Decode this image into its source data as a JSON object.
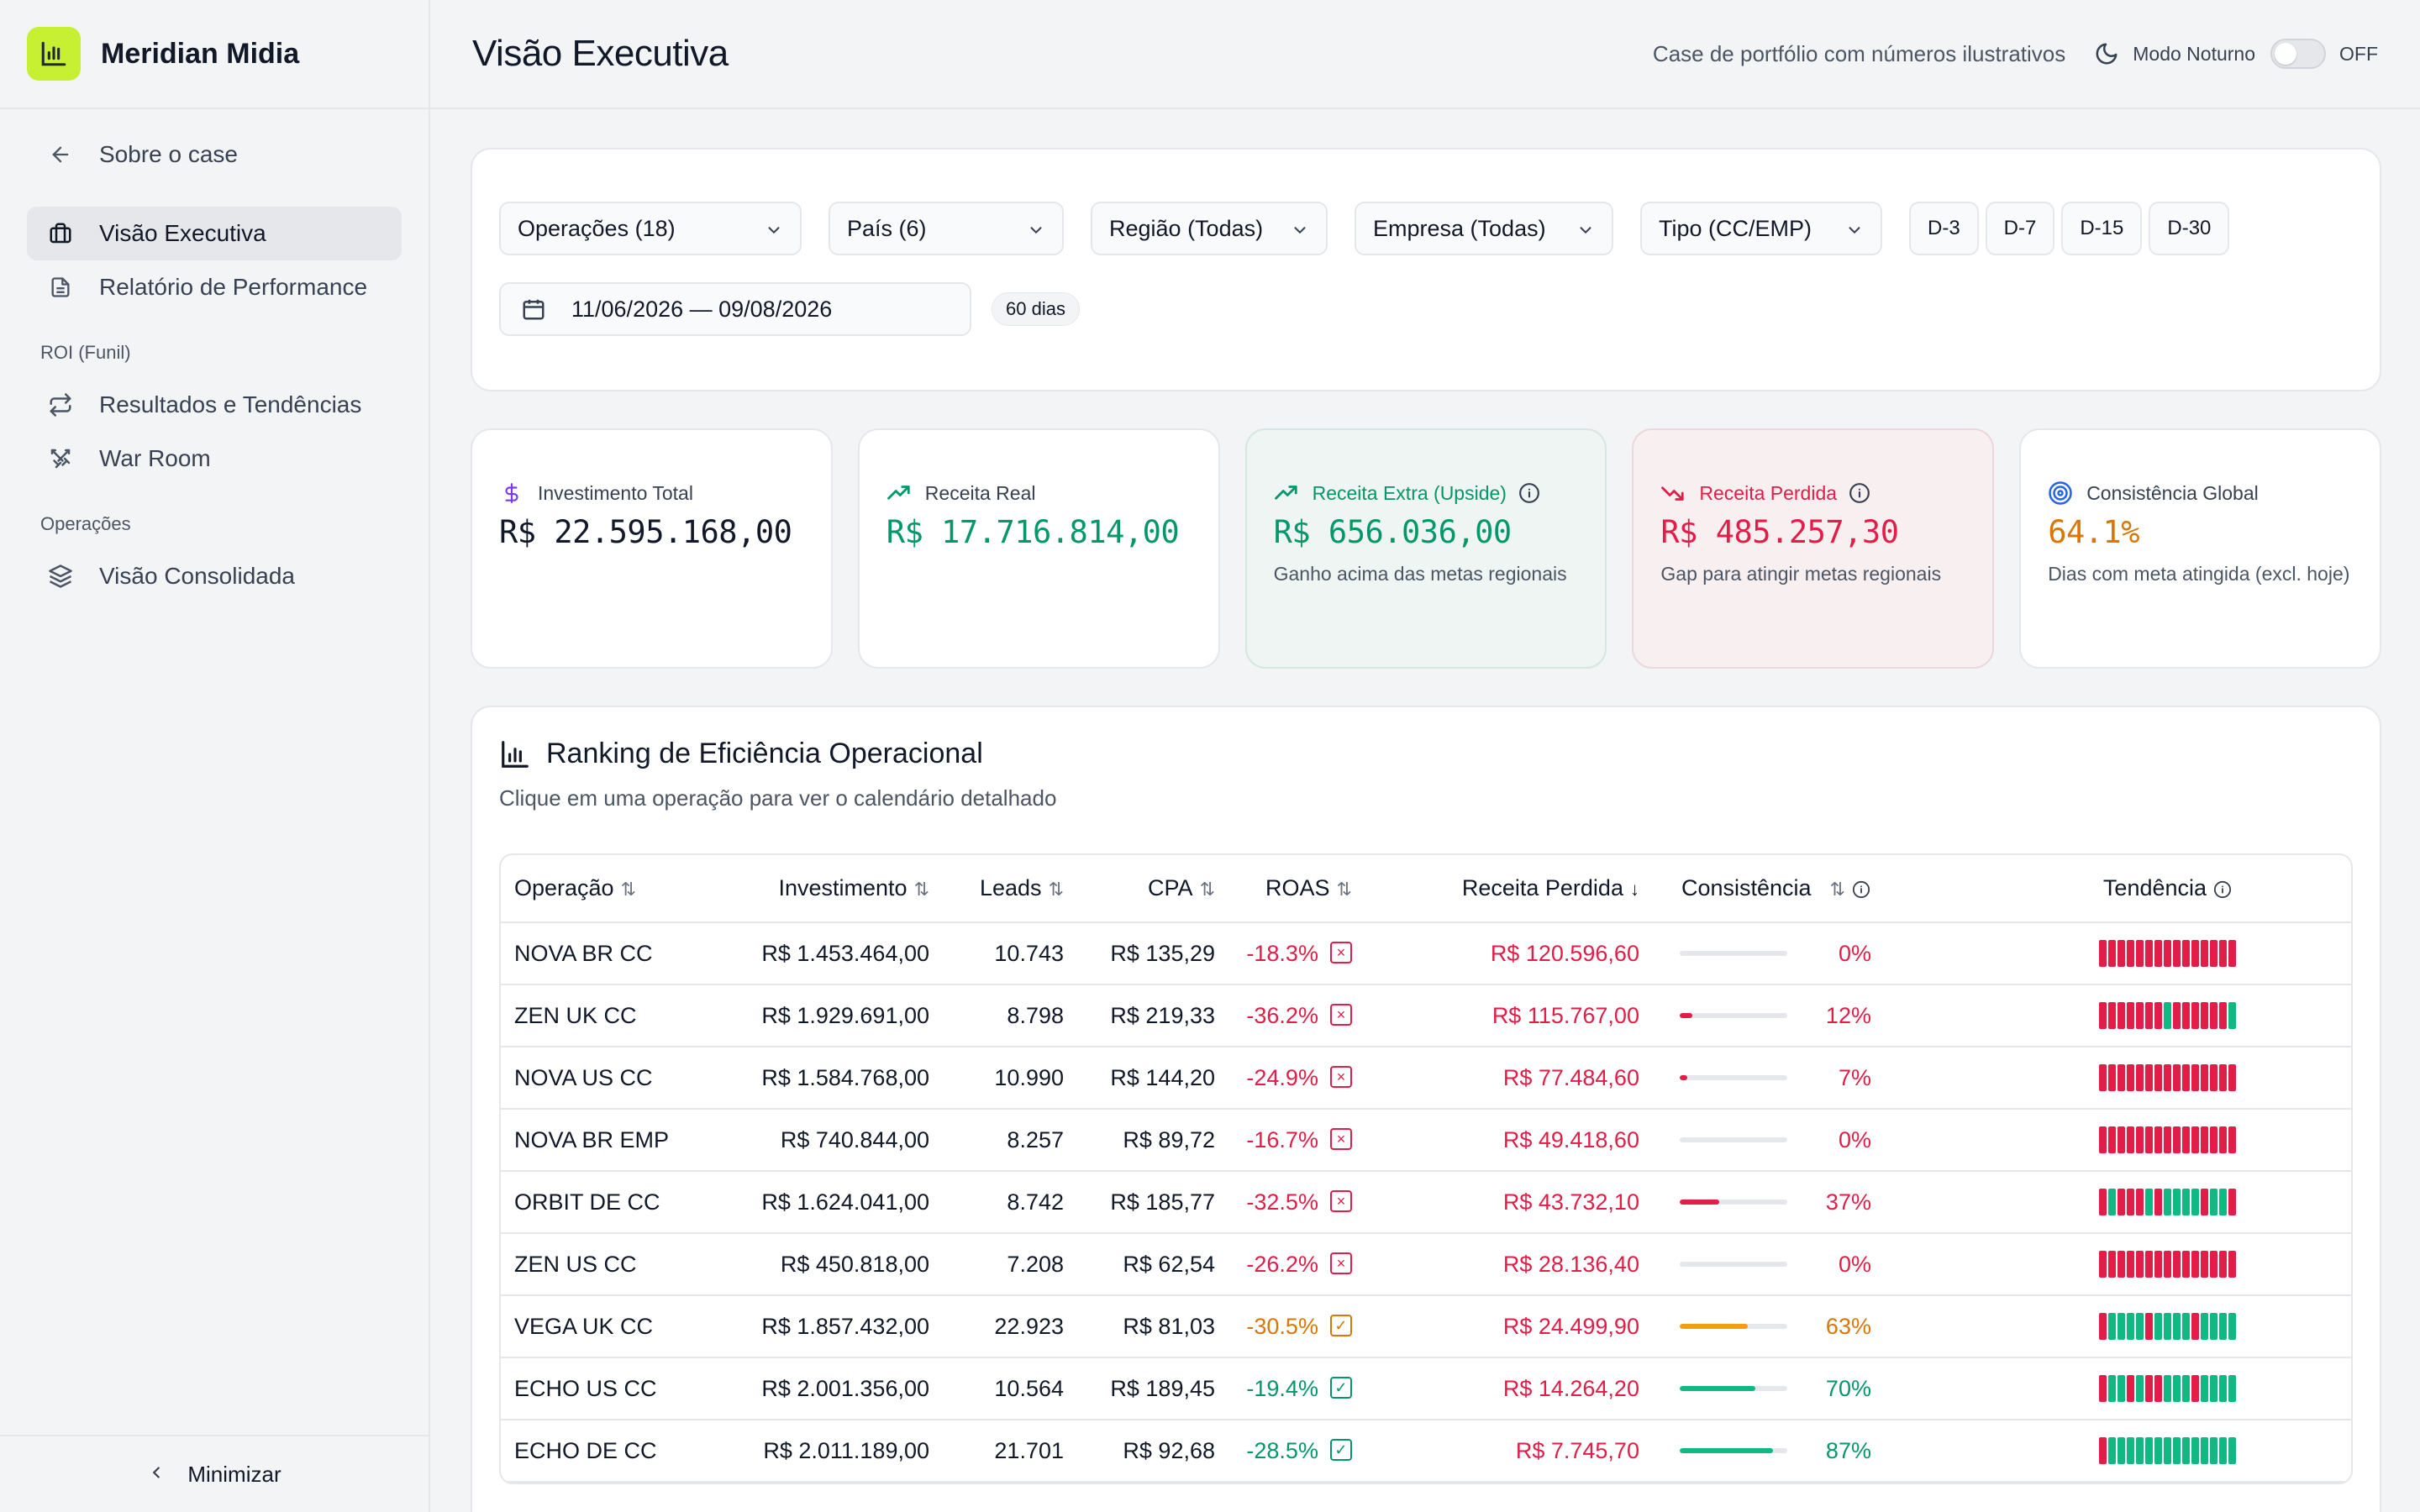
{
  "brand": {
    "name": "Meridian Midia"
  },
  "sidebar": {
    "back_label": "Sobre o case",
    "items_top": [
      {
        "label": "Visão Executiva",
        "active": true,
        "icon": "briefcase-icon"
      },
      {
        "label": "Relatório de Performance",
        "active": false,
        "icon": "document-icon"
      }
    ],
    "section_roi": "ROI (Funil)",
    "items_roi": [
      {
        "label": "Resultados e Tendências",
        "icon": "arrows-icon"
      },
      {
        "label": "War Room",
        "icon": "swords-icon"
      }
    ],
    "section_ops": "Operações",
    "items_ops": [
      {
        "label": "Visão Consolidada",
        "icon": "layers-icon"
      }
    ],
    "minimize_label": "Minimizar"
  },
  "header": {
    "title": "Visão Executiva",
    "disclaimer": "Case de portfólio com números ilustrativos",
    "mode_label": "Modo Noturno",
    "mode_state": "OFF"
  },
  "filters": {
    "operations": "Operações (18)",
    "country": "País (6)",
    "region": "Região (Todas)",
    "company": "Empresa (Todas)",
    "type": "Tipo (CC/EMP)",
    "quick_ranges": [
      "D-3",
      "D-7",
      "D-15",
      "D-30"
    ],
    "date_range": "11/06/2026 — 09/08/2026",
    "days_badge": "60 dias"
  },
  "kpis": {
    "investment": {
      "label": "Investimento Total",
      "value": "R$ 22.595.168,00",
      "color": "#111827"
    },
    "real_revenue": {
      "label": "Receita Real",
      "value": "R$ 17.716.814,00",
      "color": "#059669"
    },
    "extra_revenue": {
      "label": "Receita Extra (Upside)",
      "value": "R$ 656.036,00",
      "sub": "Ganho acima das metas regionais",
      "color": "#059669"
    },
    "lost_revenue": {
      "label": "Receita Perdida",
      "value": "R$ 485.257,30",
      "sub": "Gap para atingir metas regionais",
      "color": "#e11d48"
    },
    "consistency": {
      "label": "Consistência Global",
      "value": "64.1%",
      "sub": "Dias com meta atingida (excl. hoje)",
      "color": "#d97706"
    }
  },
  "ranking": {
    "title": "Ranking de Eficiência Operacional",
    "subtitle": "Clique em uma operação para ver o calendário detalhado",
    "columns": {
      "operation": "Operação",
      "investment": "Investimento",
      "leads": "Leads",
      "cpa": "CPA",
      "roas": "ROAS",
      "lost": "Receita Perdida",
      "consistency": "Consistência",
      "trend": "Tendência"
    },
    "rows": [
      {
        "op": "NOVA BR CC",
        "inv": "R$ 1.453.464,00",
        "leads": "10.743",
        "cpa": "R$ 135,29",
        "roas": "-18.3%",
        "roas_status": "bad",
        "lost": "R$ 120.596,60",
        "cons": "0%",
        "cons_value": 0,
        "cons_status": "bad",
        "trend": "rrrrrrrrrrrrrrr"
      },
      {
        "op": "ZEN UK CC",
        "inv": "R$ 1.929.691,00",
        "leads": "8.798",
        "cpa": "R$ 219,33",
        "roas": "-36.2%",
        "roas_status": "bad",
        "lost": "R$ 115.767,00",
        "cons": "12%",
        "cons_value": 12,
        "cons_status": "bad",
        "trend": "rrrrrrrgrrrrrrg"
      },
      {
        "op": "NOVA US CC",
        "inv": "R$ 1.584.768,00",
        "leads": "10.990",
        "cpa": "R$ 144,20",
        "roas": "-24.9%",
        "roas_status": "bad",
        "lost": "R$ 77.484,60",
        "cons": "7%",
        "cons_value": 7,
        "cons_status": "bad",
        "trend": "rrrrrrrrrrrrrrr"
      },
      {
        "op": "NOVA BR EMP",
        "inv": "R$ 740.844,00",
        "leads": "8.257",
        "cpa": "R$ 89,72",
        "roas": "-16.7%",
        "roas_status": "bad",
        "lost": "R$ 49.418,60",
        "cons": "0%",
        "cons_value": 0,
        "cons_status": "bad",
        "trend": "rrrrrrrrrrrrrrr"
      },
      {
        "op": "ORBIT DE CC",
        "inv": "R$ 1.624.041,00",
        "leads": "8.742",
        "cpa": "R$ 185,77",
        "roas": "-32.5%",
        "roas_status": "bad",
        "lost": "R$ 43.732,10",
        "cons": "37%",
        "cons_value": 37,
        "cons_status": "bad",
        "trend": "rgrrrgrggggrggr"
      },
      {
        "op": "ZEN US CC",
        "inv": "R$ 450.818,00",
        "leads": "7.208",
        "cpa": "R$ 62,54",
        "roas": "-26.2%",
        "roas_status": "bad",
        "lost": "R$ 28.136,40",
        "cons": "0%",
        "cons_value": 0,
        "cons_status": "bad",
        "trend": "rrrrrrrrrrrrrrr"
      },
      {
        "op": "VEGA UK CC",
        "inv": "R$ 1.857.432,00",
        "leads": "22.923",
        "cpa": "R$ 81,03",
        "roas": "-30.5%",
        "roas_status": "warn",
        "lost": "R$ 24.499,90",
        "cons": "63%",
        "cons_value": 63,
        "cons_status": "warn",
        "trend": "rggggrggggrgggg"
      },
      {
        "op": "ECHO US CC",
        "inv": "R$ 2.001.356,00",
        "leads": "10.564",
        "cpa": "R$ 189,45",
        "roas": "-19.4%",
        "roas_status": "good",
        "lost": "R$ 14.264,20",
        "cons": "70%",
        "cons_value": 70,
        "cons_status": "good",
        "trend": "rggrgrrgggrgggg"
      },
      {
        "op": "ECHO DE CC",
        "inv": "R$ 2.011.189,00",
        "leads": "21.701",
        "cpa": "R$ 92,68",
        "roas": "-28.5%",
        "roas_status": "good",
        "lost": "R$ 7.745,70",
        "cons": "87%",
        "cons_value": 87,
        "cons_status": "good",
        "trend": "rgggggggggggggg"
      }
    ]
  },
  "colors": {
    "accent": "#c6f031",
    "bad": "#e11d48",
    "warn": "#d97706",
    "good": "#059669",
    "bar_good": "#10b981",
    "bar_warn": "#f59e0b"
  }
}
